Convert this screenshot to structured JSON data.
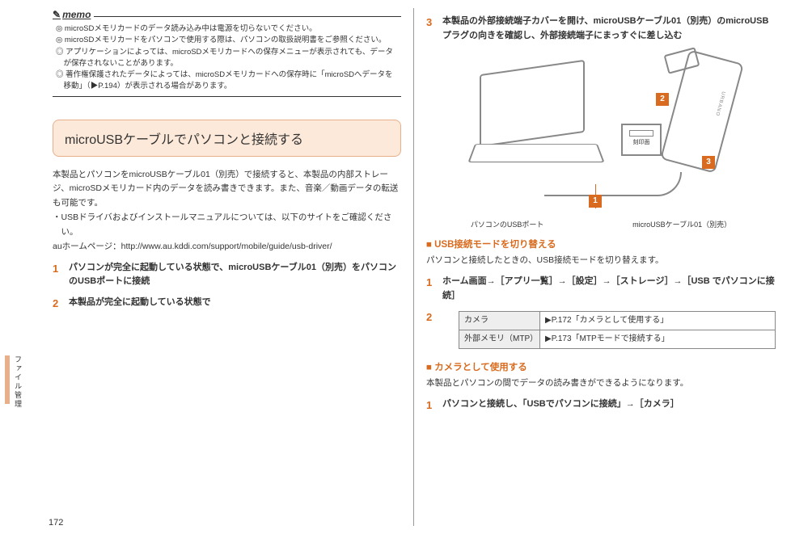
{
  "memo": {
    "label": "memo",
    "lines": [
      "◎ microSDメモリカードのデータ読み込み中は電源を切らないでください。",
      "◎ microSDメモリカードをパソコンで使用する際は、パソコンの取扱説明書をご参照ください。",
      "◎ アプリケーションによっては、microSDメモリカードへの保存メニューが表示されても、データが保存されないことがあります。",
      "◎ 著作権保護されたデータによっては、microSDメモリカードへの保存時に「microSDへデータを移動」（▶P.194）が表示される場合があります。"
    ]
  },
  "sectionTitle": "microUSBケーブルでパソコンと接続する",
  "intro": {
    "p1": "本製品とパソコンをmicroUSBケーブル01（別売）で接続すると、本製品の内部ストレージ、microSDメモリカード内のデータを読み書きできます。また、音楽／動画データの転送も可能です。",
    "p2": "・USBドライバおよびインストールマニュアルについては、以下のサイトをご確認ください。",
    "p3": "auホームページ：http://www.au.kddi.com/support/mobile/guide/usb-driver/"
  },
  "stepsLeft": [
    {
      "n": "1",
      "t": "パソコンが完全に起動している状態で、microUSBケーブル01（別売）をパソコンのUSBポートに接続"
    },
    {
      "n": "2",
      "t": "本製品が完全に起動している状態で"
    }
  ],
  "vtab": "ファイル管理",
  "pageNum": "172",
  "right": {
    "step3": {
      "n": "3",
      "t": "本製品の外部接続端子カバーを開け、microUSBケーブル01（別売）のmicroUSBプラグの向きを確認し、外部接続端子にまっすぐに差し込む"
    },
    "connectorLabel": "刻印面",
    "diagLabels": {
      "a": "パソコンのUSBポート",
      "b": "microUSBケーブル01（別売）"
    },
    "subh1": "USB接続モードを切り替える",
    "p_sub1": "パソコンと接続したときの、USB接続モードを切り替えます。",
    "sub1Steps": [
      {
        "n": "1",
        "t": "ホーム画面→［アプリ一覧］→［設定］→［ストレージ］→［USB でパソコンに接続］"
      }
    ],
    "table": {
      "r1c1": "カメラ",
      "r1c2": "▶P.172「カメラとして使用する」",
      "r2c1": "外部メモリ（MTP）",
      "r2c2": "▶P.173「MTPモードで接続する」"
    },
    "subh2": "カメラとして使用する",
    "p_sub2": "本製品とパソコンの間でデータの読み書きができるようになります。",
    "sub2Steps": [
      {
        "n": "1",
        "t": "パソコンと接続し、「USBでパソコンに接続」→［カメラ］"
      }
    ]
  }
}
